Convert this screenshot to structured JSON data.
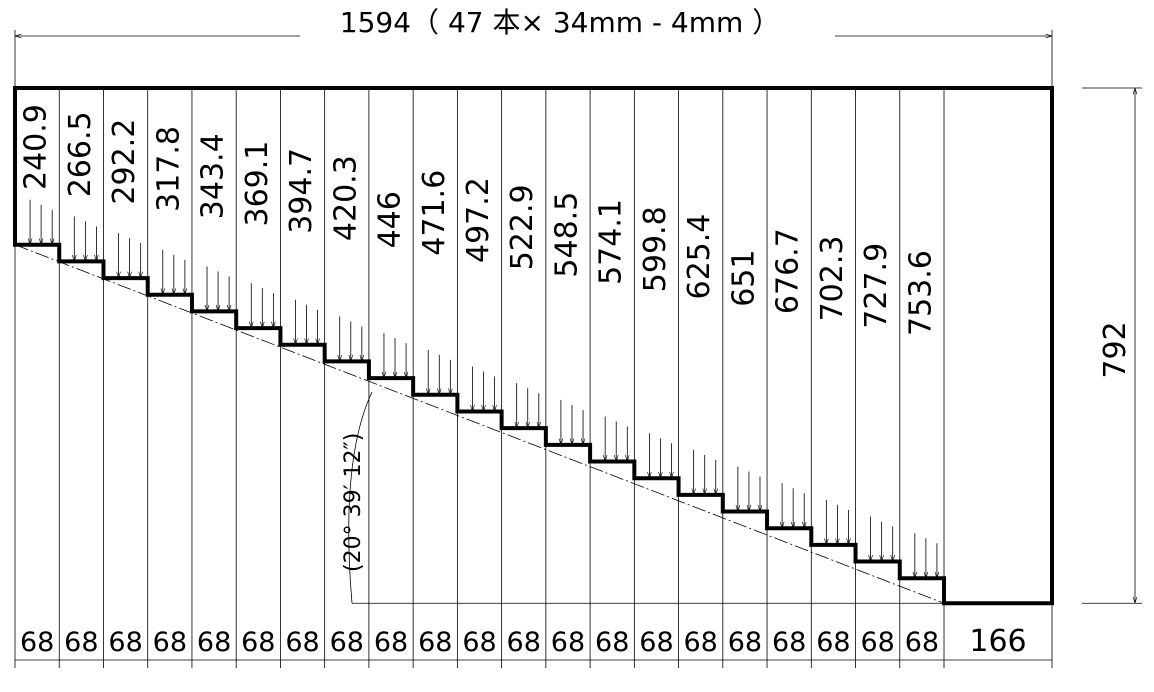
{
  "drawing": {
    "total_width_label": "1594（ 47 本× 34mm - 4mm ）",
    "height": 792,
    "angle_label": "(20° 39′ 12″)",
    "heights": [
      240.9,
      266.5,
      292.2,
      317.8,
      343.4,
      369.1,
      394.7,
      420.3,
      446,
      471.6,
      497.2,
      522.9,
      548.5,
      574.1,
      599.8,
      625.4,
      651,
      676.7,
      702.3,
      727.9,
      753.6
    ],
    "widths": [
      68,
      68,
      68,
      68,
      68,
      68,
      68,
      68,
      68,
      68,
      68,
      68,
      68,
      68,
      68,
      68,
      68,
      68,
      68,
      68,
      68,
      166
    ]
  }
}
